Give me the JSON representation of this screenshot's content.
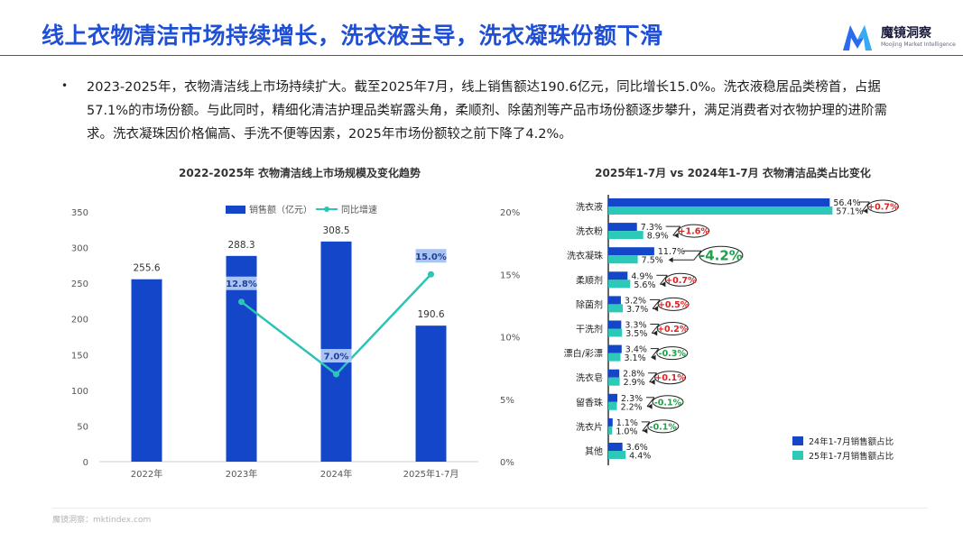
{
  "header": {
    "title": "线上衣物清洁市场持续增长，洗衣液主导，洗衣凝珠份额下滑",
    "logo_name": "魔镜洞察",
    "logo_sub": "Moojing Market Intelligence"
  },
  "summary": {
    "bullet": "•",
    "text": "2023-2025年，衣物清洁线上市场持续扩大。截至2025年7月，线上销售额达190.6亿元，同比增长15.0%。洗衣液稳居品类榜首，占据57.1%的市场份额。与此同时，精细化清洁护理品类崭露头角，柔顺剂、除菌剂等产品市场份额逐步攀升，满足消费者对衣物护理的进阶需求。洗衣凝珠因价格偏高、手洗不便等因素，2025年市场份额较之前下降了4.2%。"
  },
  "footer": {
    "source": "魔镜洞察：mktindex.com"
  },
  "colors": {
    "title": "#1f4fd4",
    "bar": "#1346c8",
    "line": "#2cc4b4",
    "bar2": "#2cc9b9",
    "up": "#e02020",
    "down": "#1fa04a"
  },
  "chart_data": [
    {
      "type": "bar+line",
      "title": "2022-2025年 衣物清洁线上市场规模及变化趋势",
      "categories": [
        "2022年",
        "2023年",
        "2024年",
        "2025年1-7月"
      ],
      "series": [
        {
          "name": "销售额（亿元）",
          "type": "bar",
          "axis": "left",
          "values": [
            255.6,
            288.3,
            308.5,
            190.6
          ]
        },
        {
          "name": "同比增速",
          "type": "line",
          "axis": "right",
          "values": [
            null,
            12.8,
            7.0,
            15.0
          ],
          "labels": [
            "",
            "12.8%",
            "7.0%",
            "15.0%"
          ]
        }
      ],
      "y_left": {
        "min": 0,
        "max": 350,
        "ticks": [
          "0",
          "50",
          "100",
          "150",
          "200",
          "250",
          "300",
          "350"
        ]
      },
      "y_right": {
        "min": 0,
        "max": 20,
        "ticks": [
          "0%",
          "5%",
          "10%",
          "15%",
          "20%"
        ]
      },
      "bar_labels": [
        "255.6",
        "288.3",
        "308.5",
        "190.6"
      ]
    },
    {
      "type": "horizontal-bar",
      "title": "2025年1-7月 vs 2024年1-7月 衣物清洁品类占比变化",
      "categories": [
        "洗衣液",
        "洗衣粉",
        "洗衣凝珠",
        "柔顺剂",
        "除菌剂",
        "干洗剂",
        "漂白/彩漂",
        "洗衣皂",
        "留香珠",
        "洗衣片",
        "其他"
      ],
      "series": [
        {
          "name": "24年1-7月销售额占比",
          "values": [
            56.4,
            7.3,
            11.7,
            4.9,
            3.2,
            3.3,
            3.4,
            2.8,
            2.3,
            1.1,
            3.6
          ],
          "labels": [
            "56.4%",
            "7.3%",
            "11.7%",
            "4.9%",
            "3.2%",
            "3.3%",
            "3.4%",
            "2.8%",
            "2.3%",
            "1.1%",
            "3.6%"
          ]
        },
        {
          "name": "25年1-7月销售额占比",
          "values": [
            57.1,
            8.9,
            7.5,
            5.6,
            3.7,
            3.5,
            3.1,
            2.9,
            2.2,
            1.0,
            4.4
          ],
          "labels": [
            "57.1%",
            "8.9%",
            "7.5%",
            "5.6%",
            "3.7%",
            "3.5%",
            "3.1%",
            "2.9%",
            "2.2%",
            "1.0%",
            "4.4%"
          ]
        }
      ],
      "changes": [
        "+0.7%",
        "+1.6%",
        "-4.2%",
        "+0.7%",
        "+0.5%",
        "+0.2%",
        "-0.3%",
        "+0.1%",
        "-0.1%",
        "-0.1%",
        ""
      ]
    }
  ]
}
